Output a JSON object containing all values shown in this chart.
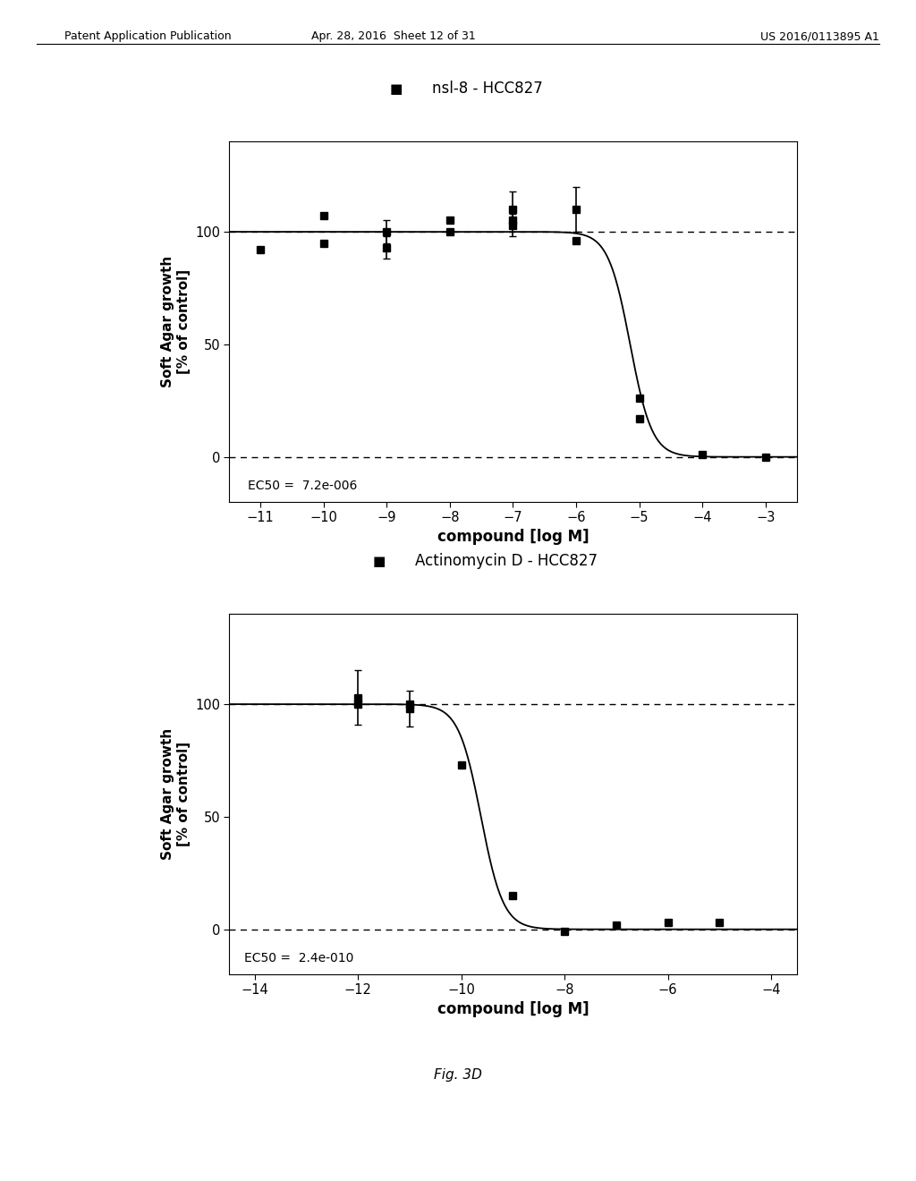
{
  "header_left": "Patent Application Publication",
  "header_mid": "Apr. 28, 2016  Sheet 12 of 31",
  "header_right": "US 2016/0113895 A1",
  "fig_caption": "Fig. 3D",
  "background_color": "#ffffff",
  "plot1": {
    "title": "nsl-8 - HCC827",
    "xlabel": "compound [log M]",
    "ylabel": "Soft Agar growth\n[% of control]",
    "ec50_text": "EC50 =  7.2e-006",
    "ec50": -5.143,
    "hillslope": 2.5,
    "xlim": [
      -11.5,
      -2.5
    ],
    "xticks": [
      -11,
      -10,
      -9,
      -8,
      -7,
      -6,
      -5,
      -4,
      -3
    ],
    "ylim": [
      -20,
      140
    ],
    "yticks": [
      0,
      50,
      100
    ],
    "hlines": [
      0,
      100
    ],
    "data_x": [
      -11,
      -10,
      -10,
      -9,
      -9,
      -8,
      -8,
      -7,
      -7,
      -7,
      -6,
      -6,
      -5,
      -5,
      -4,
      -3
    ],
    "data_y": [
      92,
      107,
      95,
      100,
      93,
      105,
      100,
      103,
      105,
      110,
      110,
      96,
      26,
      17,
      1,
      0
    ],
    "data_yerr": [
      0,
      0,
      0,
      5,
      5,
      0,
      0,
      5,
      0,
      8,
      10,
      0,
      0,
      0,
      0,
      0
    ]
  },
  "plot2": {
    "title": "Actinomycin D - HCC827",
    "xlabel": "compound [log M]",
    "ylabel": "Soft Agar growth\n[% of control]",
    "ec50_text": "EC50 =  2.4e-010",
    "ec50": -9.62,
    "hillslope": 2.0,
    "xlim": [
      -14.5,
      -3.5
    ],
    "xticks": [
      -14,
      -12,
      -10,
      -8,
      -6,
      -4
    ],
    "ylim": [
      -20,
      140
    ],
    "yticks": [
      0,
      50,
      100
    ],
    "hlines": [
      0,
      100
    ],
    "data_x": [
      -12,
      -12,
      -11,
      -11,
      -10,
      -9,
      -8,
      -7,
      -6,
      -5
    ],
    "data_y": [
      103,
      100,
      100,
      98,
      73,
      15,
      -1,
      2,
      3,
      3
    ],
    "data_yerr": [
      12,
      0,
      0,
      8,
      0,
      0,
      0,
      0,
      0,
      0
    ]
  }
}
